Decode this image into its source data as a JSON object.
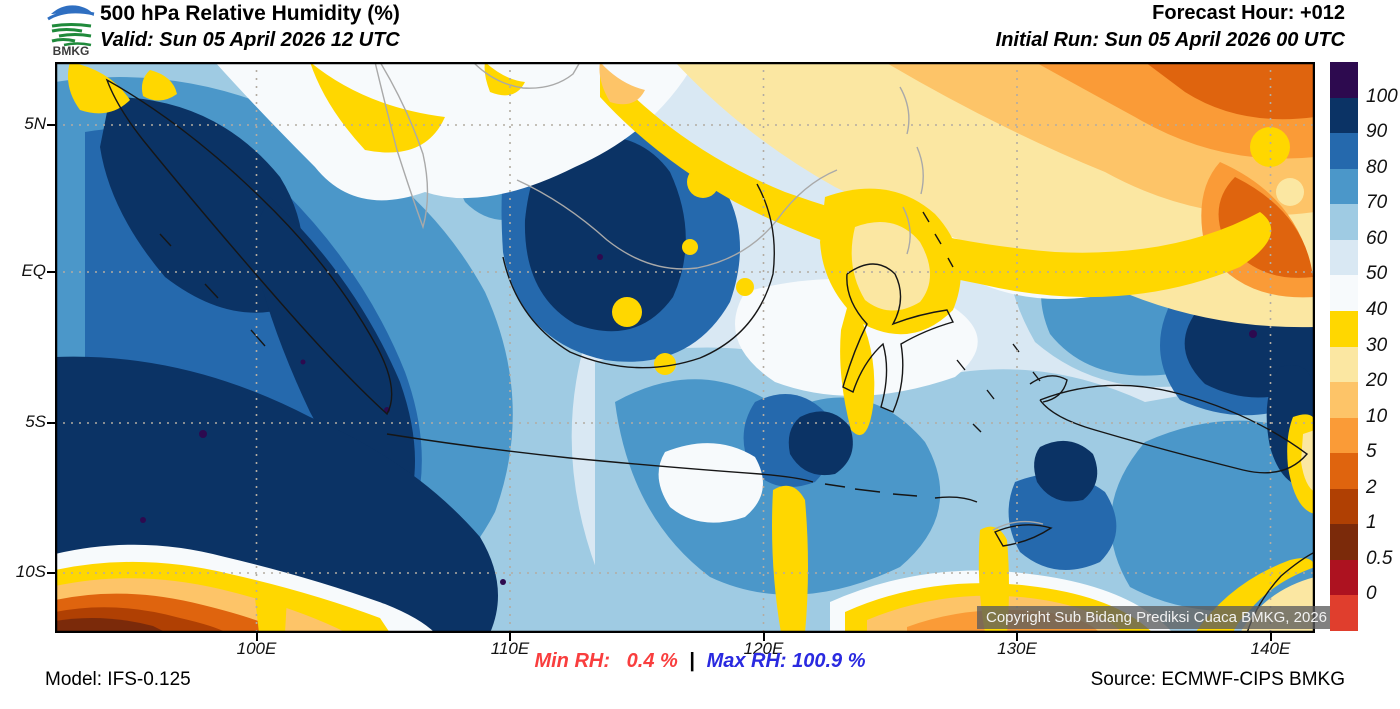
{
  "header": {
    "logo_text": "BMKG",
    "title": "500 hPa Relative Humidity (%)",
    "valid": "Valid: Sun 05 April 2026 12 UTC",
    "forecast_hour": "Forecast Hour: +012",
    "initial_run": "Initial Run: Sun 05 April 2026 00 UTC"
  },
  "map": {
    "lat_labels": [
      "5N",
      "EQ",
      "5S",
      "10S"
    ],
    "lon_labels": [
      "100E",
      "110E",
      "120E",
      "130E",
      "140E"
    ],
    "copyright": "Copyright Sub Bidang Prediksi Cuaca BMKG, 2026"
  },
  "colorbar": {
    "labels": [
      "100",
      "90",
      "80",
      "70",
      "60",
      "50",
      "40",
      "30",
      "20",
      "10",
      "5",
      "2",
      "1",
      "0.5",
      "0"
    ],
    "colors": [
      "#2d0a4f",
      "#0b3365",
      "#2569ad",
      "#4b97c9",
      "#9fcbe3",
      "#d9e8f3",
      "#f7fafc",
      "#ffd700",
      "#fbe7a2",
      "#fdc468",
      "#fa9b37",
      "#df640e",
      "#b04003",
      "#7b2a0a",
      "#ad1220",
      "#e03e2d"
    ]
  },
  "footer": {
    "model": "Model: IFS-0.125",
    "min_rh": "Min RH:   0.4 %",
    "separator": "|",
    "max_rh": "Max RH: 100.9 %",
    "source": "Source: ECMWF-CIPS BMKG",
    "min_color": "#f93e3e",
    "max_color": "#2a2ae0"
  },
  "chart_data": {
    "type": "heatmap",
    "title": "500 hPa Relative Humidity (%)",
    "units": "%",
    "levels": [
      0,
      0.5,
      1,
      2,
      5,
      10,
      20,
      30,
      40,
      50,
      60,
      70,
      80,
      90,
      100
    ],
    "level_colors_top_to_bottom": [
      "#2d0a4f",
      "#0b3365",
      "#2569ad",
      "#4b97c9",
      "#9fcbe3",
      "#d9e8f3",
      "#f7fafc",
      "#ffd700",
      "#fbe7a2",
      "#fdc468",
      "#fa9b37",
      "#df640e",
      "#b04003",
      "#7b2a0a",
      "#ad1220",
      "#e03e2d"
    ],
    "lat_ticks": [
      "5N",
      "EQ",
      "5S",
      "10S"
    ],
    "lon_ticks": [
      "100E",
      "110E",
      "120E",
      "130E",
      "140E"
    ],
    "min_rh": 0.4,
    "max_rh": 100.9,
    "forecast_hour": "+012",
    "valid_time": "Sun 05 April 2026 12 UTC",
    "initial_run": "Sun 05 April 2026 00 UTC",
    "model": "IFS-0.125",
    "source": "ECMWF-CIPS BMKG",
    "legend_position": "right",
    "grid": "dotted"
  }
}
